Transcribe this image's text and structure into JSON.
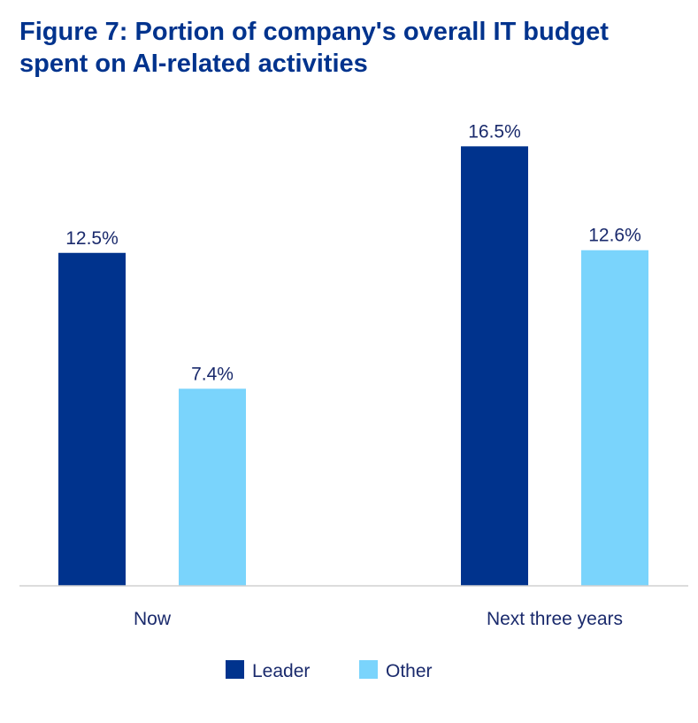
{
  "chart_data": {
    "type": "bar",
    "title": "Figure 7: Portion of company's overall IT budget spent on AI-related activities",
    "categories": [
      "Now",
      "Next three years"
    ],
    "series": [
      {
        "name": "Leader",
        "values": [
          12.5,
          16.5
        ],
        "labels": [
          "12.5%",
          "16.5%"
        ],
        "color": "#00338D"
      },
      {
        "name": "Other",
        "values": [
          7.4,
          12.6
        ],
        "labels": [
          "7.4%",
          "12.6%"
        ],
        "color": "#7AD4FC"
      }
    ],
    "xlabel": "",
    "ylabel": "",
    "ylim": [
      0,
      18
    ],
    "grid": false,
    "legend": "bottom-center"
  }
}
